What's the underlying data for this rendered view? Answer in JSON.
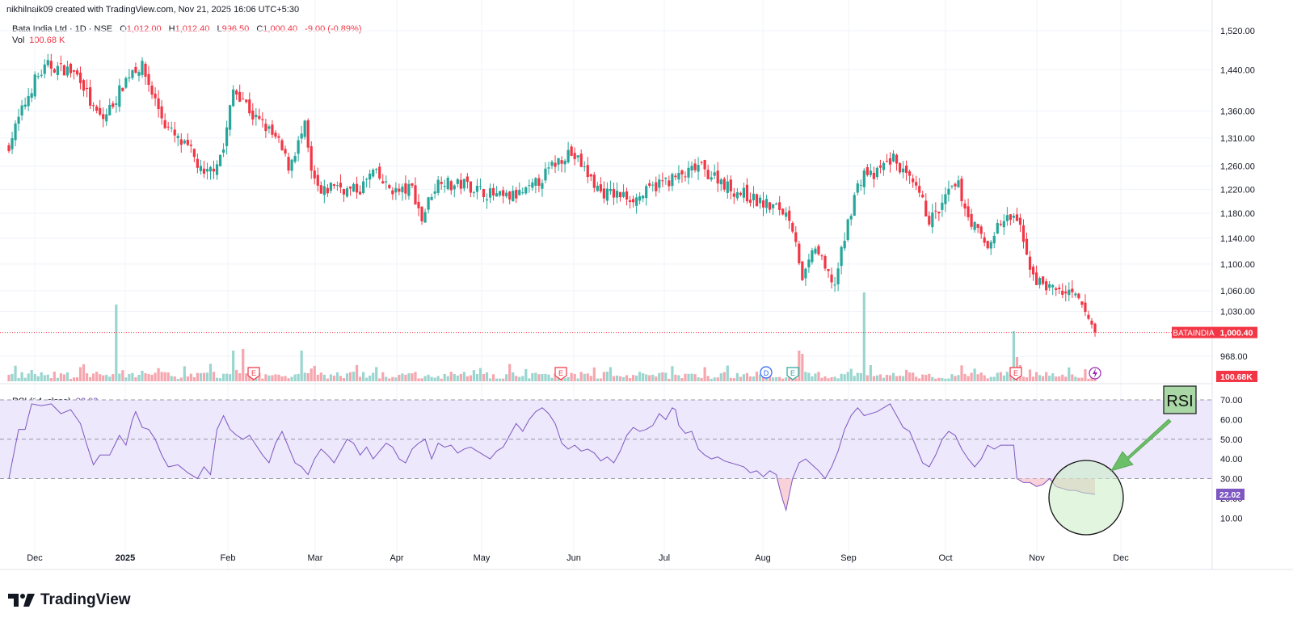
{
  "header": {
    "text": "nikhilnaik09 created with TradingView.com, Nov 21, 2025 16:06 UTC+5:30"
  },
  "legend": {
    "symbol": "Bata India Ltd · 1D · NSE",
    "open_label": "O",
    "open": "1,012.00",
    "high_label": "H",
    "high": "1,012.40",
    "low_label": "L",
    "low": "996.50",
    "close_label": "C",
    "close": "1,000.40",
    "change": "-9.00 (-0.89%)",
    "vol_label": "Vol",
    "vol": "100.68 K"
  },
  "rsi_legend": {
    "label": "RSI (14, close)",
    "value": "22.02"
  },
  "price_badge": {
    "ticker": "BATAINDIA",
    "value": "1,000.40"
  },
  "volume_badge": "100.68K",
  "rsi_badge": "22.02",
  "annotation": {
    "text": "RSI"
  },
  "brand": {
    "name": "TradingView"
  },
  "colors": {
    "up": "#26a69a",
    "down": "#f23645",
    "rsi_line": "#7e57c2",
    "rsi_band": "#ede8fb"
  },
  "chart_data": [
    {
      "type": "candlestick",
      "title": "Bata India Ltd · 1D · NSE",
      "x_tick_labels": [
        "Dec",
        "2025",
        "Feb",
        "Mar",
        "Apr",
        "May",
        "Jun",
        "Jul",
        "Aug",
        "Sep",
        "Oct",
        "Nov",
        "Dec"
      ],
      "y_tick_labels": [
        "1,520.00",
        "1,440.00",
        "1,360.00",
        "1,310.00",
        "1,260.00",
        "1,220.00",
        "1,180.00",
        "1,140.00",
        "1,100.00",
        "1,060.00",
        "1,030.00",
        "968.00"
      ],
      "y_scale": "log",
      "ylim": [
        940,
        1535
      ],
      "last_close": 1000.4,
      "anchors_close": [
        [
          0,
          1298
        ],
        [
          4,
          1360
        ],
        [
          8,
          1420
        ],
        [
          12,
          1448
        ],
        [
          18,
          1440
        ],
        [
          22,
          1425
        ],
        [
          26,
          1360
        ],
        [
          29,
          1345
        ],
        [
          33,
          1385
        ],
        [
          35,
          1410
        ],
        [
          38,
          1442
        ],
        [
          41,
          1445
        ],
        [
          44,
          1395
        ],
        [
          48,
          1335
        ],
        [
          52,
          1305
        ],
        [
          56,
          1285
        ],
        [
          60,
          1240
        ],
        [
          63,
          1260
        ],
        [
          66,
          1290
        ],
        [
          69,
          1400
        ],
        [
          72,
          1385
        ],
        [
          75,
          1350
        ],
        [
          79,
          1330
        ],
        [
          83,
          1300
        ],
        [
          86,
          1260
        ],
        [
          89,
          1300
        ],
        [
          91,
          1330
        ],
        [
          93,
          1245
        ],
        [
          96,
          1210
        ],
        [
          100,
          1230
        ],
        [
          104,
          1218
        ],
        [
          108,
          1220
        ],
        [
          112,
          1250
        ],
        [
          116,
          1225
        ],
        [
          120,
          1215
        ],
        [
          124,
          1222
        ],
        [
          127,
          1170
        ],
        [
          130,
          1215
        ],
        [
          133,
          1240
        ],
        [
          136,
          1225
        ],
        [
          140,
          1230
        ],
        [
          144,
          1220
        ],
        [
          148,
          1212
        ],
        [
          152,
          1205
        ],
        [
          156,
          1210
        ],
        [
          160,
          1218
        ],
        [
          164,
          1240
        ],
        [
          168,
          1265
        ],
        [
          172,
          1285
        ],
        [
          175,
          1270
        ],
        [
          178,
          1245
        ],
        [
          182,
          1215
        ],
        [
          186,
          1212
        ],
        [
          190,
          1208
        ],
        [
          193,
          1205
        ],
        [
          196,
          1215
        ],
        [
          200,
          1230
        ],
        [
          204,
          1238
        ],
        [
          208,
          1244
        ],
        [
          212,
          1260
        ],
        [
          214,
          1250
        ],
        [
          218,
          1240
        ],
        [
          222,
          1220
        ],
        [
          226,
          1212
        ],
        [
          230,
          1200
        ],
        [
          234,
          1192
        ],
        [
          237,
          1188
        ],
        [
          240,
          1175
        ],
        [
          242,
          1140
        ],
        [
          244,
          1070
        ],
        [
          246,
          1100
        ],
        [
          248,
          1128
        ],
        [
          251,
          1090
        ],
        [
          254,
          1070
        ],
        [
          257,
          1140
        ],
        [
          260,
          1210
        ],
        [
          263,
          1250
        ],
        [
          266,
          1240
        ],
        [
          269,
          1262
        ],
        [
          272,
          1274
        ],
        [
          276,
          1240
        ],
        [
          280,
          1210
        ],
        [
          283,
          1170
        ],
        [
          286,
          1182
        ],
        [
          289,
          1215
        ],
        [
          292,
          1225
        ],
        [
          295,
          1175
        ],
        [
          298,
          1150
        ],
        [
          301,
          1125
        ],
        [
          304,
          1160
        ],
        [
          307,
          1170
        ],
        [
          310,
          1172
        ],
        [
          313,
          1110
        ],
        [
          316,
          1075
        ],
        [
          320,
          1065
        ],
        [
          324,
          1058
        ],
        [
          328,
          1050
        ],
        [
          330,
          1035
        ],
        [
          333,
          1012
        ],
        [
          334,
          1000.4
        ]
      ]
    },
    {
      "type": "bar",
      "title": "Vol",
      "last_value": "100.68 K",
      "note": "daily volume bars, colored by candle direction"
    },
    {
      "type": "line",
      "title": "RSI (14, close)",
      "y_tick_labels": [
        "70.00",
        "60.00",
        "50.00",
        "40.00",
        "30.00",
        "20.00",
        "10.00"
      ],
      "ylim": [
        6,
        73
      ],
      "bands": [
        30,
        50,
        70
      ],
      "last_value": 22.02,
      "anchors": [
        [
          0,
          30
        ],
        [
          3,
          55
        ],
        [
          5,
          55
        ],
        [
          7,
          68
        ],
        [
          10,
          67
        ],
        [
          13,
          68
        ],
        [
          16,
          63
        ],
        [
          19,
          65
        ],
        [
          22,
          58
        ],
        [
          24,
          47
        ],
        [
          26,
          37
        ],
        [
          28,
          42
        ],
        [
          31,
          42
        ],
        [
          34,
          52
        ],
        [
          36,
          47
        ],
        [
          38,
          60
        ],
        [
          39,
          64
        ],
        [
          41,
          56
        ],
        [
          43,
          55
        ],
        [
          45,
          50
        ],
        [
          47,
          42
        ],
        [
          49,
          36
        ],
        [
          52,
          37
        ],
        [
          55,
          33
        ],
        [
          58,
          30
        ],
        [
          60,
          36
        ],
        [
          62,
          32
        ],
        [
          64,
          55
        ],
        [
          66,
          62
        ],
        [
          68,
          55
        ],
        [
          70,
          52
        ],
        [
          72,
          50
        ],
        [
          74,
          52
        ],
        [
          76,
          47
        ],
        [
          78,
          42
        ],
        [
          80,
          38
        ],
        [
          82,
          48
        ],
        [
          84,
          54
        ],
        [
          86,
          46
        ],
        [
          88,
          38
        ],
        [
          90,
          36
        ],
        [
          92,
          32
        ],
        [
          94,
          40
        ],
        [
          96,
          45
        ],
        [
          98,
          42
        ],
        [
          100,
          38
        ],
        [
          102,
          44
        ],
        [
          104,
          50
        ],
        [
          106,
          48
        ],
        [
          108,
          42
        ],
        [
          110,
          46
        ],
        [
          112,
          40
        ],
        [
          114,
          44
        ],
        [
          116,
          48
        ],
        [
          118,
          46
        ],
        [
          120,
          40
        ],
        [
          122,
          38
        ],
        [
          124,
          45
        ],
        [
          126,
          48
        ],
        [
          128,
          50
        ],
        [
          130,
          40
        ],
        [
          132,
          48
        ],
        [
          134,
          46
        ],
        [
          136,
          47
        ],
        [
          138,
          43
        ],
        [
          140,
          45
        ],
        [
          142,
          46
        ],
        [
          144,
          44
        ],
        [
          146,
          42
        ],
        [
          148,
          40
        ],
        [
          150,
          44
        ],
        [
          152,
          46
        ],
        [
          154,
          52
        ],
        [
          156,
          58
        ],
        [
          158,
          54
        ],
        [
          160,
          60
        ],
        [
          162,
          64
        ],
        [
          164,
          66
        ],
        [
          166,
          63
        ],
        [
          168,
          58
        ],
        [
          170,
          48
        ],
        [
          172,
          45
        ],
        [
          174,
          47
        ],
        [
          176,
          44
        ],
        [
          178,
          45
        ],
        [
          180,
          43
        ],
        [
          182,
          39
        ],
        [
          184,
          41
        ],
        [
          186,
          38
        ],
        [
          188,
          44
        ],
        [
          190,
          52
        ],
        [
          192,
          56
        ],
        [
          194,
          54
        ],
        [
          196,
          55
        ],
        [
          198,
          57
        ],
        [
          200,
          63
        ],
        [
          202,
          60
        ],
        [
          204,
          66
        ],
        [
          205,
          65
        ],
        [
          206,
          57
        ],
        [
          208,
          53
        ],
        [
          210,
          54
        ],
        [
          212,
          45
        ],
        [
          214,
          42
        ],
        [
          216,
          40
        ],
        [
          218,
          41
        ],
        [
          220,
          39
        ],
        [
          222,
          38
        ],
        [
          224,
          37
        ],
        [
          226,
          36
        ],
        [
          228,
          33
        ],
        [
          230,
          34
        ],
        [
          232,
          31
        ],
        [
          234,
          34
        ],
        [
          236,
          32
        ],
        [
          237,
          25
        ],
        [
          238,
          19
        ],
        [
          239,
          14
        ],
        [
          240,
          22
        ],
        [
          241,
          30
        ],
        [
          243,
          38
        ],
        [
          245,
          40
        ],
        [
          247,
          37
        ],
        [
          249,
          34
        ],
        [
          251,
          30
        ],
        [
          253,
          36
        ],
        [
          255,
          44
        ],
        [
          257,
          55
        ],
        [
          259,
          62
        ],
        [
          261,
          66
        ],
        [
          263,
          62
        ],
        [
          265,
          63
        ],
        [
          267,
          64
        ],
        [
          269,
          66
        ],
        [
          271,
          68
        ],
        [
          273,
          62
        ],
        [
          275,
          56
        ],
        [
          277,
          54
        ],
        [
          279,
          46
        ],
        [
          281,
          38
        ],
        [
          283,
          36
        ],
        [
          285,
          42
        ],
        [
          287,
          50
        ],
        [
          289,
          54
        ],
        [
          291,
          52
        ],
        [
          293,
          45
        ],
        [
          295,
          40
        ],
        [
          297,
          36
        ],
        [
          299,
          40
        ],
        [
          301,
          47
        ],
        [
          303,
          45
        ],
        [
          305,
          47
        ],
        [
          307,
          47
        ],
        [
          309,
          47
        ],
        [
          310,
          30
        ],
        [
          312,
          28
        ],
        [
          314,
          28
        ],
        [
          316,
          26
        ],
        [
          318,
          27
        ],
        [
          320,
          30
        ],
        [
          322,
          26
        ],
        [
          324,
          25
        ],
        [
          326,
          24
        ],
        [
          328,
          24
        ],
        [
          330,
          23
        ],
        [
          332,
          22.5
        ],
        [
          334,
          22.02
        ]
      ]
    }
  ]
}
